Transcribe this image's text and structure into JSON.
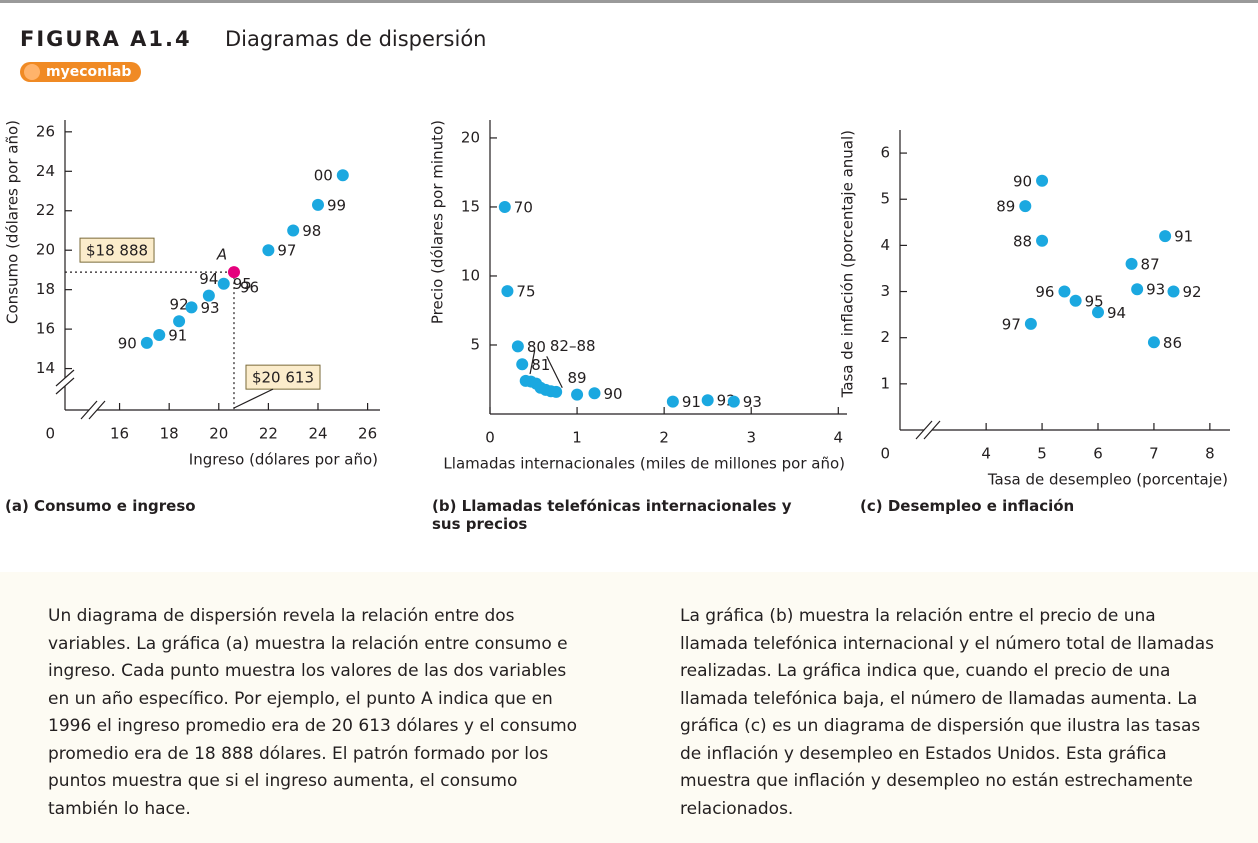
{
  "figure_label": "FIGURA A1.4",
  "figure_title": "Diagramas de dispersión",
  "badge": "myeconlab",
  "chart_data": [
    {
      "type": "scatter",
      "xlabel": "Ingreso (dólares por año)",
      "ylabel": "Consumo (dólares por año)",
      "caption": "(a) Consumo e ingreso",
      "xlim": [
        13.8,
        26.5
      ],
      "ylim": [
        11.9,
        26.6
      ],
      "xticks": [
        16,
        18,
        20,
        22,
        24,
        26
      ],
      "yticks": [
        14,
        16,
        18,
        20,
        22,
        24,
        26
      ],
      "axis_break": "both",
      "origin_label": 0,
      "color": "#1ba8e0",
      "x": [
        17.1,
        17.6,
        18.4,
        18.9,
        19.6,
        20.2,
        22.0,
        23.0,
        24.0,
        25.0
      ],
      "values": [
        15.3,
        15.7,
        16.4,
        17.1,
        17.7,
        18.3,
        20.0,
        21.0,
        22.3,
        23.8
      ],
      "labels": [
        "90",
        "91",
        "92",
        "93",
        "94",
        "95",
        "97",
        "98",
        "99",
        "00"
      ],
      "highlight": {
        "label": "A",
        "year": "96",
        "x": 20.613,
        "y": 18.888,
        "x_label": "$20 613",
        "y_label": "$18 888",
        "color": "#e5007d"
      }
    },
    {
      "type": "scatter",
      "xlabel": "Llamadas internacionales (miles de millones por año)",
      "ylabel": "Precio (dólares por minuto)",
      "caption": "(b) Llamadas telefónicas internacionales y sus precios",
      "xlim": [
        0,
        4.1
      ],
      "ylim": [
        0,
        21.3
      ],
      "xticks": [
        0,
        1,
        2,
        3,
        4
      ],
      "yticks": [
        5,
        10,
        15,
        20
      ],
      "color": "#1ba8e0",
      "x": [
        0.17,
        0.2,
        0.32,
        0.37,
        0.41,
        0.47,
        0.53,
        0.58,
        0.64,
        0.7,
        0.76,
        1.0,
        1.2,
        2.1,
        2.5,
        2.8
      ],
      "values": [
        15,
        8.9,
        4.9,
        3.6,
        2.4,
        2.35,
        2.2,
        1.9,
        1.75,
        1.65,
        1.6,
        1.4,
        1.5,
        0.9,
        1.0,
        0.9
      ],
      "labels": [
        "70",
        "75",
        "80",
        "81",
        null,
        null,
        null,
        null,
        null,
        null,
        null,
        "89",
        "90",
        "91",
        "92",
        "93"
      ],
      "annotation": "82–88"
    },
    {
      "type": "scatter",
      "xlabel": "Tasa de desempleo (porcentaje)",
      "ylabel": "Tasa de inflación (porcentaje anual)",
      "caption": "(c) Desempleo e inflación",
      "xlim": [
        2.46,
        8.36
      ],
      "ylim": [
        0,
        6.5
      ],
      "xticks": [
        4,
        5,
        6,
        7,
        8
      ],
      "yticks": [
        1,
        2,
        3,
        4,
        5,
        6
      ],
      "axis_break": "x",
      "origin_label": 0,
      "color": "#1ba8e0",
      "x": [
        7.0,
        6.6,
        5.0,
        4.7,
        5.0,
        7.2,
        7.35,
        6.7,
        6.0,
        5.6,
        5.4,
        4.8
      ],
      "values": [
        1.9,
        3.6,
        4.1,
        4.85,
        5.4,
        4.2,
        3.0,
        3.05,
        2.55,
        2.8,
        3.0,
        2.3
      ],
      "labels": [
        "86",
        "87",
        "88",
        "89",
        "90",
        "91",
        "92",
        "93",
        "94",
        "95",
        "96",
        "97"
      ]
    }
  ],
  "paragraphs": [
    "Un diagrama de dispersión revela la relación entre dos variables. La gráfica (a) muestra la relación entre consumo e ingreso. Cada punto muestra los valores de las dos variables en un año específico. Por ejemplo, el punto A indica que en 1996 el ingreso promedio era de 20 613 dólares y el consumo promedio era de 18 888 dólares. El patrón formado por los puntos muestra que si el ingreso aumenta, el consumo también lo hace.",
    "La gráfica (b) muestra la relación entre el precio de una llamada telefónica internacional y el número total de llamadas realizadas. La gráfica indica que, cuando el precio de una llamada telefónica baja, el número de llamadas aumenta. La gráfica (c) es un diagrama de dispersión que ilustra las tasas de inflación y desempleo en Estados Unidos. Esta gráfica muestra que inflación y desempleo no están estrechamente relacionados."
  ]
}
